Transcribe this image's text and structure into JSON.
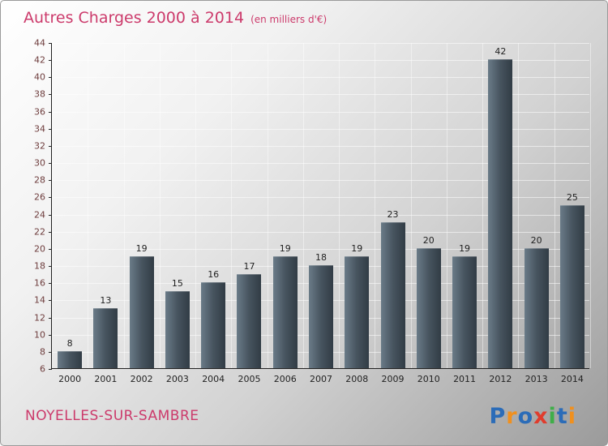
{
  "title": {
    "main": "Autres Charges 2000 à 2014",
    "subtitle": "(en milliers d'€)"
  },
  "footer": {
    "location": "NOYELLES-SUR-SAMBRE",
    "logo_letters": [
      {
        "ch": "P",
        "color": "#2b6cb8"
      },
      {
        "ch": "r",
        "color": "#f0901e"
      },
      {
        "ch": "o",
        "color": "#2b6cb8"
      },
      {
        "ch": "x",
        "color": "#e03c2d"
      },
      {
        "ch": "i",
        "color": "#3fae49"
      },
      {
        "ch": "t",
        "color": "#2b6cb8"
      },
      {
        "ch": "i",
        "color": "#f0901e"
      }
    ]
  },
  "colors": {
    "accent_pink": "#cc3a6b",
    "y_label": "#6e3d3d",
    "bar_light": "#6a7b88",
    "bar_mid": "#47545f",
    "bar_dark": "#313c45",
    "axis": "#222222"
  },
  "chart_data": {
    "type": "bar",
    "title": "Autres Charges 2000 à 2014",
    "subtitle": "(en milliers d'€)",
    "categories": [
      "2000",
      "2001",
      "2002",
      "2003",
      "2004",
      "2005",
      "2006",
      "2007",
      "2008",
      "2009",
      "2010",
      "2011",
      "2012",
      "2013",
      "2014"
    ],
    "values": [
      8,
      13,
      19,
      15,
      16,
      17,
      19,
      18,
      19,
      23,
      20,
      19,
      42,
      20,
      25
    ],
    "xlabel": "",
    "ylabel": "",
    "ylim": [
      6,
      44
    ],
    "ytick_step": 2,
    "grid": true,
    "legend": "none",
    "value_labels": "above bars"
  }
}
